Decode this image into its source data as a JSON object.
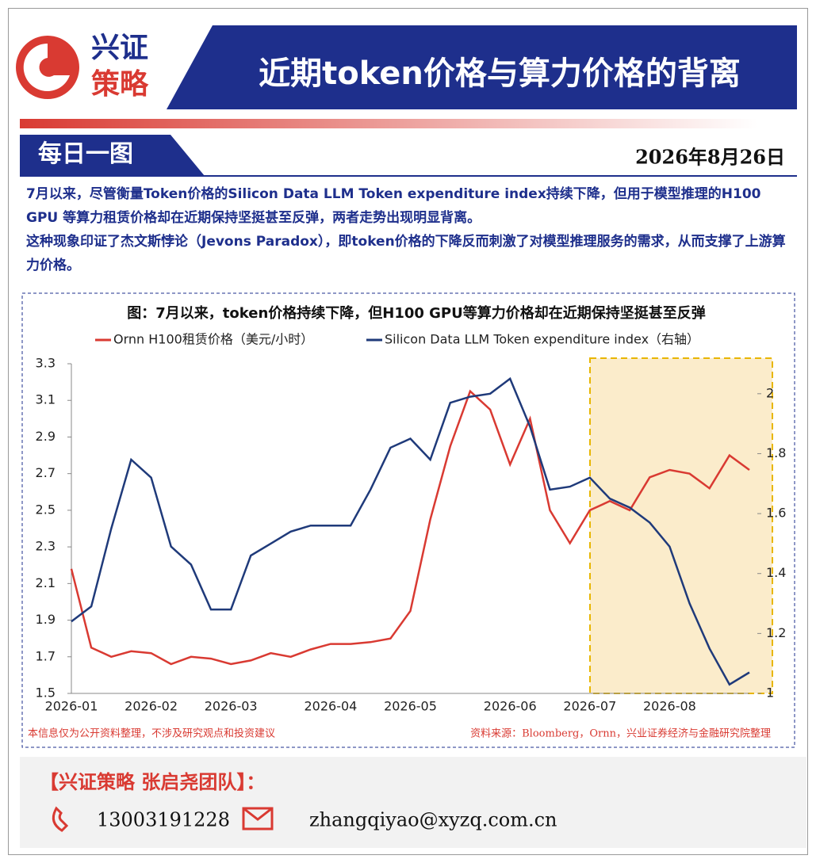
{
  "header": {
    "logo_top": "兴证",
    "logo_bottom": "策略",
    "title": "近期token价格与算力价格的背离"
  },
  "section": {
    "label": "每日一图",
    "date": "2026年8月26日"
  },
  "paragraphs": [
    "7月以来，尽管衡量Token价格的Silicon Data LLM Token expenditure index持续下降，但用于模型推理的H100 GPU 等算力租赁价格却在近期保持坚挺甚至反弹，两者走势出现明显背离。",
    "这种现象印证了杰文斯悖论（Jevons Paradox），即token价格的下降反而刺激了对模型推理服务的需求，从而支撑了上游算力价格。"
  ],
  "chart_data": {
    "type": "line",
    "title": "图：7月以来，token价格持续下降，但H100 GPU等算力价格却在近期保持坚挺甚至反弹",
    "categories": [
      "2026-01",
      null,
      null,
      null,
      "2026-02",
      null,
      null,
      null,
      "2026-03",
      null,
      null,
      null,
      null,
      "2026-04",
      null,
      null,
      null,
      "2026-05",
      null,
      null,
      null,
      null,
      "2026-06",
      null,
      null,
      null,
      "2026-07",
      null,
      null,
      null,
      "2026-08",
      null,
      null,
      null,
      null
    ],
    "series": [
      {
        "name": "Ornn H100租赁价格（美元/小时）",
        "color": "#d93a32",
        "values": [
          2.18,
          1.75,
          1.7,
          1.73,
          1.72,
          1.66,
          1.7,
          1.69,
          1.66,
          1.68,
          1.72,
          1.7,
          1.74,
          1.77,
          1.77,
          1.78,
          1.8,
          1.95,
          2.45,
          2.85,
          3.15,
          3.05,
          2.75,
          3.0,
          2.5,
          2.32,
          2.5,
          2.55,
          2.5,
          2.68,
          2.72,
          2.7,
          2.62,
          2.8,
          2.72
        ]
      },
      {
        "name": "Silicon Data LLM Token expenditure index（右轴）",
        "color": "#1f3a7a",
        "axis": "y2",
        "values": [
          1.24,
          1.29,
          1.55,
          1.78,
          1.72,
          1.49,
          1.43,
          1.28,
          1.28,
          1.46,
          1.5,
          1.54,
          1.56,
          1.56,
          1.56,
          1.68,
          1.82,
          1.85,
          1.78,
          1.97,
          1.99,
          2.0,
          2.05,
          1.89,
          1.68,
          1.69,
          1.72,
          1.65,
          1.62,
          1.57,
          1.49,
          1.3,
          1.15,
          1.03,
          1.07
        ]
      }
    ],
    "ylim": [
      1.5,
      3.3
    ],
    "yticks": [
      1.5,
      1.7,
      1.9,
      2.1,
      2.3,
      2.5,
      2.7,
      2.9,
      3.1,
      3.3
    ],
    "y2lim": [
      1,
      2.1
    ],
    "y2ticks": [
      1,
      1.2,
      1.4,
      1.6,
      1.8,
      2
    ],
    "notes": {
      "left": "本信息仅为公开资料整理，不涉及研究观点和投资建议",
      "right": "资料来源：Bloomberg，Ornn，兴业证券经济与金融研究院整理"
    }
  },
  "footer": {
    "team": "【兴证策略 张启尧团队】：",
    "phone": "13003191228",
    "email": "zhangqiyao@xyzq.com.cn"
  }
}
